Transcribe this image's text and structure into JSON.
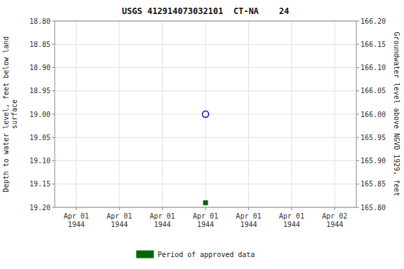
{
  "chart_data": {
    "type": "scatter",
    "title": "USGS 412914073032101  CT-NA    24",
    "y_label": "Depth to water level, feet below land\nsurface",
    "y2_label": "Groundwater level above NGVD 1929, feet",
    "categories": [
      "Apr 01\n1944",
      "Apr 01\n1944",
      "Apr 01\n1944",
      "Apr 01\n1944",
      "Apr 01\n1944",
      "Apr 01\n1944",
      "Apr 02\n1944"
    ],
    "series": [
      {
        "color": "#0000cc",
        "marker": "circle-open",
        "values": [
          null,
          null,
          null,
          19.0,
          null,
          null,
          null
        ]
      },
      {
        "name": "Period of approved data",
        "color": "#006600",
        "marker": "square",
        "values": [
          null,
          null,
          null,
          19.19,
          null,
          null,
          null
        ]
      }
    ],
    "ylim": [
      19.2,
      18.8
    ],
    "yticks": [
      {
        "value": 18.8,
        "label": "18.80"
      },
      18.85,
      {
        "value": 18.9,
        "label": "18.90"
      },
      18.95,
      {
        "value": 19.0,
        "label": "19.00"
      },
      19.05,
      {
        "value": 19.1,
        "label": "19.10"
      },
      19.15,
      {
        "value": 19.2,
        "label": "19.20"
      }
    ],
    "y2lim": [
      165.8,
      166.2
    ],
    "y2ticks": [
      {
        "value": 166.2,
        "label": "166.20"
      },
      166.15,
      {
        "value": 166.1,
        "label": "166.10"
      },
      166.05,
      {
        "value": 166.0,
        "label": "166.00"
      },
      165.95,
      {
        "value": 165.9,
        "label": "165.90"
      },
      165.85,
      {
        "value": 165.8,
        "label": "165.80"
      }
    ],
    "grid": true,
    "legend": "bottom"
  }
}
